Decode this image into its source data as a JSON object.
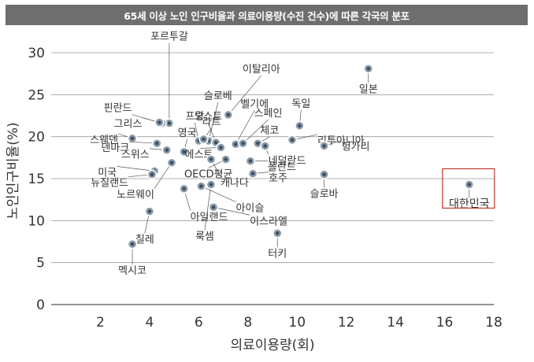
{
  "title": "65세 이상 노인 인구비율과 의료이용량(수진 건수)에 따른 각국의 분포",
  "chart_data": {
    "type": "scatter",
    "title": "65세 이상 노인 인구비율과 의료이용량(수진 건수)에 따른 각국의 분포",
    "xlabel": "의료이용량(회)",
    "ylabel": "노인인구비율(%)",
    "xlim": [
      0,
      18
    ],
    "ylim": [
      0,
      30
    ],
    "xticks": [
      2,
      4,
      6,
      8,
      10,
      12,
      14,
      16,
      18
    ],
    "yticks": [
      0,
      5,
      10,
      15,
      20,
      25,
      30
    ],
    "grid": "horizontal",
    "marker_color": "#8a9aab",
    "highlight_color": "#c0392b",
    "points": [
      {
        "name": "일본",
        "x": 12.9,
        "y": 28.1
      },
      {
        "name": "포르투갈",
        "x": 4.8,
        "y": 21.6
      },
      {
        "name": "슬로베",
        "x": 6.4,
        "y": 19.5
      },
      {
        "name": "이탈리아",
        "x": 7.2,
        "y": 22.6
      },
      {
        "name": "오스트",
        "x": 6.7,
        "y": 19.3
      },
      {
        "name": "벨기에",
        "x": 7.5,
        "y": 19.1
      },
      {
        "name": "독일",
        "x": 10.1,
        "y": 21.3
      },
      {
        "name": "핀란드",
        "x": 4.5,
        "y": 21.6
      },
      {
        "name": "그리스",
        "x": 4.4,
        "y": 21.7
      },
      {
        "name": "프랑",
        "x": 6.0,
        "y": 19.5
      },
      {
        "name": "라트",
        "x": 6.2,
        "y": 19.7
      },
      {
        "name": "스페인",
        "x": 7.8,
        "y": 19.2
      },
      {
        "name": "리투아니아",
        "x": 9.8,
        "y": 19.6
      },
      {
        "name": "스웨덴",
        "x": 3.3,
        "y": 19.8
      },
      {
        "name": "영국",
        "x": 5.4,
        "y": 18.2
      },
      {
        "name": "체코",
        "x": 8.4,
        "y": 19.2
      },
      {
        "name": "헝가리",
        "x": 11.1,
        "y": 18.9
      },
      {
        "name": "덴마크",
        "x": 4.3,
        "y": 19.2
      },
      {
        "name": "에스토",
        "x": 6.9,
        "y": 18.7
      },
      {
        "name": "네덜란드",
        "x": 8.7,
        "y": 18.9
      },
      {
        "name": "스위스",
        "x": 4.7,
        "y": 18.4
      },
      {
        "name": "미국",
        "x": 4.2,
        "y": 15.9
      },
      {
        "name": "OECD평균",
        "x": 7.1,
        "y": 17.3
      },
      {
        "name": "폴란드",
        "x": 8.1,
        "y": 17.1
      },
      {
        "name": "뉴질랜드",
        "x": 4.1,
        "y": 15.5
      },
      {
        "name": "호주",
        "x": 8.2,
        "y": 15.6
      },
      {
        "name": "슬로바",
        "x": 11.1,
        "y": 15.5
      },
      {
        "name": "노르웨이",
        "x": 4.9,
        "y": 16.9
      },
      {
        "name": "캐나다",
        "x": 6.5,
        "y": 17.3
      },
      {
        "name": "대한민국",
        "x": 17.0,
        "y": 14.3,
        "highlight": true
      },
      {
        "name": "아이슬",
        "x": 6.1,
        "y": 14.1
      },
      {
        "name": "아일랜드",
        "x": 5.4,
        "y": 13.8
      },
      {
        "name": "룩셈",
        "x": 6.5,
        "y": 14.3
      },
      {
        "name": "이스라엘",
        "x": 6.6,
        "y": 11.6
      },
      {
        "name": "터키",
        "x": 9.2,
        "y": 8.5
      },
      {
        "name": "칠레",
        "x": 4.0,
        "y": 11.1
      },
      {
        "name": "멕시코",
        "x": 3.3,
        "y": 7.2
      }
    ]
  }
}
